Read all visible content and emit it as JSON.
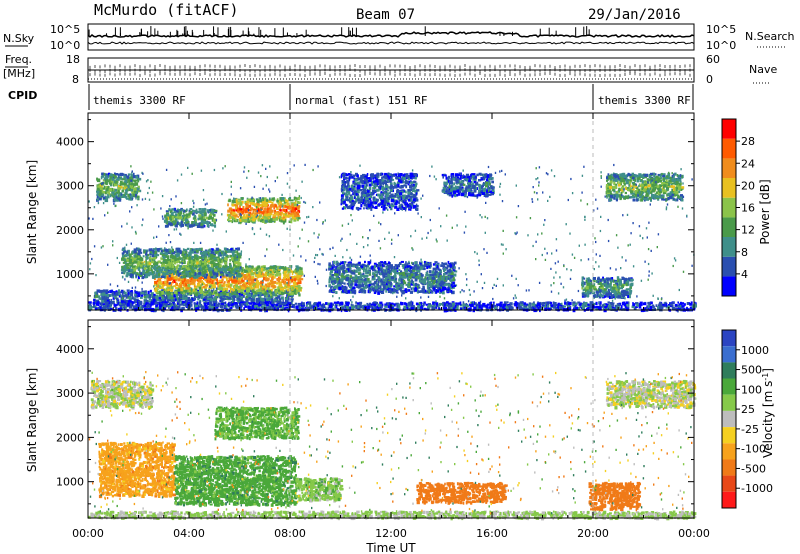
{
  "header": {
    "station": "McMurdo (fitACF)",
    "beam": "Beam 07",
    "date": "29/Jan/2016"
  },
  "side_labels": {
    "nsky": "N.Sky",
    "nsearch": "N.Search",
    "freq": "Freq.",
    "freq_unit": "[MHz]",
    "nave": "Nave",
    "cpid": "CPID"
  },
  "noise_panel": {
    "left_ticks": [
      "10^5",
      "10^0"
    ],
    "right_ticks": [
      "10^5",
      "10^0"
    ]
  },
  "freq_panel": {
    "left_ticks": [
      "18",
      "8"
    ],
    "right_ticks": [
      "60",
      "0"
    ]
  },
  "cpid_segments": [
    {
      "label": "themis 3300 RF",
      "start": 0,
      "end": 8
    },
    {
      "label": "normal (fast) 151 RF",
      "start": 8,
      "end": 20
    },
    {
      "label": "themis 3300 RF",
      "start": 20,
      "end": 24
    }
  ],
  "axes": {
    "ylabel": "Slant Range [km]",
    "yticks": [
      1000,
      2000,
      3000,
      4000
    ],
    "ylim": [
      180,
      4650
    ],
    "xlabel": "Time UT",
    "xticks": [
      "00:00",
      "04:00",
      "08:00",
      "12:00",
      "16:00",
      "20:00",
      "00:00"
    ],
    "xlim_hours": [
      0,
      24
    ]
  },
  "colors": {
    "power": [
      "#0000ff",
      "#2a4fb0",
      "#3f8f8a",
      "#4a9a4a",
      "#8bc34a",
      "#e8c020",
      "#f08c1c",
      "#ff5a00",
      "#ff0000"
    ],
    "velocity": [
      "#2b44c2",
      "#3a6ed0",
      "#2f7d5c",
      "#4aa83a",
      "#86c94a",
      "#bdbdbd",
      "#f5d020",
      "#f7a21c",
      "#f07a18",
      "#e84818",
      "#ff1a1a"
    ]
  },
  "chart_data": [
    {
      "type": "heatmap",
      "title": "",
      "ylabel": "Slant Range [km]",
      "colorbar_label": "Power [dB]",
      "colorbar_ticks": [
        4,
        8,
        12,
        16,
        20,
        24,
        28
      ],
      "colorbar_range": [
        0,
        32
      ],
      "regions": [
        {
          "t": [
            0.2,
            8.1
          ],
          "r": [
            350,
            650
          ],
          "v": 8
        },
        {
          "t": [
            2.6,
            8.4
          ],
          "r": [
            550,
            1200
          ],
          "v": 25
        },
        {
          "t": [
            1.3,
            6.0
          ],
          "r": [
            950,
            1600
          ],
          "v": 15
        },
        {
          "t": [
            5.5,
            8.3
          ],
          "r": [
            2200,
            2750
          ],
          "v": 27
        },
        {
          "t": [
            0.3,
            2.0
          ],
          "r": [
            2700,
            3300
          ],
          "v": 15
        },
        {
          "t": [
            3.0,
            5.0
          ],
          "r": [
            2100,
            2500
          ],
          "v": 14
        },
        {
          "t": [
            9.5,
            14.5
          ],
          "r": [
            600,
            1300
          ],
          "v": 9
        },
        {
          "t": [
            10.0,
            13.0
          ],
          "r": [
            2500,
            3300
          ],
          "v": 7
        },
        {
          "t": [
            14.0,
            16.0
          ],
          "r": [
            2800,
            3300
          ],
          "v": 8
        },
        {
          "t": [
            19.5,
            21.5
          ],
          "r": [
            500,
            950
          ],
          "v": 12
        },
        {
          "t": [
            20.5,
            23.5
          ],
          "r": [
            2700,
            3300
          ],
          "v": 16
        },
        {
          "t": [
            0.0,
            24.0
          ],
          "r": [
            200,
            380
          ],
          "v": 6
        }
      ]
    },
    {
      "type": "heatmap",
      "title": "",
      "ylabel": "Slant Range [km]",
      "colorbar_label": "Velocity [m s^-1]",
      "colorbar_ticks": [
        1000,
        500,
        100,
        25,
        -25,
        -100,
        -500,
        -1000
      ],
      "regions": [
        {
          "t": [
            0.4,
            3.4
          ],
          "r": [
            700,
            1900
          ],
          "v": -150
        },
        {
          "t": [
            3.4,
            8.2
          ],
          "r": [
            500,
            1600
          ],
          "v": 150
        },
        {
          "t": [
            8.2,
            10.0
          ],
          "r": [
            600,
            1100
          ],
          "v": 60
        },
        {
          "t": [
            5.0,
            8.3
          ],
          "r": [
            2000,
            2700
          ],
          "v": 120
        },
        {
          "t": [
            0.1,
            2.5
          ],
          "r": [
            2700,
            3300
          ],
          "v": 10
        },
        {
          "t": [
            19.8,
            21.8
          ],
          "r": [
            400,
            1000
          ],
          "v": -300
        },
        {
          "t": [
            20.5,
            24.0
          ],
          "r": [
            2700,
            3300
          ],
          "v": 5
        },
        {
          "t": [
            13.0,
            16.5
          ],
          "r": [
            550,
            1000
          ],
          "v": -350
        },
        {
          "t": [
            0.0,
            24.0
          ],
          "r": [
            200,
            350
          ],
          "v": 40
        }
      ]
    }
  ]
}
